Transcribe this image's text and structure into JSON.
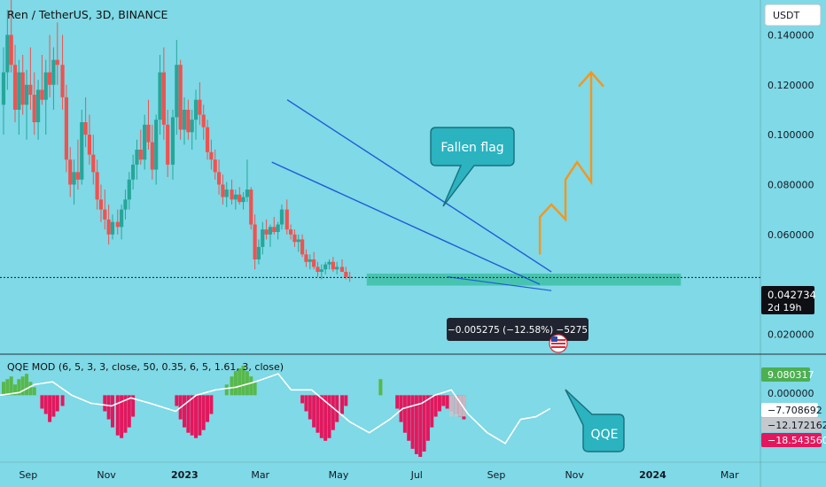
{
  "header": {
    "title": "Ren / TetherUS, 3D, BINANCE"
  },
  "currency_button": {
    "label": "USDT"
  },
  "price_axis": {
    "ticks": [
      "0.140000",
      "0.120000",
      "0.100000",
      "0.080000",
      "0.060000",
      "0.020000"
    ]
  },
  "current_price": {
    "value": "0.042734",
    "countdown": "2d 19h"
  },
  "measure_label": {
    "text": "−0.005275 (−12.58%) −5275"
  },
  "callouts": {
    "flag": "Fallen flag",
    "qqe": "QQE"
  },
  "indicator": {
    "title": "QQE MOD (6, 5, 3, 3, close, 50, 0.35, 6, 5, 1.61, 3, close)",
    "values": [
      "9.080317",
      "0.000000",
      "−7.708692",
      "−12.172162",
      "−18.543560"
    ]
  },
  "time_axis": {
    "labels": [
      "Sep",
      "Nov",
      "2023",
      "Mar",
      "May",
      "Jul",
      "Sep",
      "Nov",
      "2024",
      "Mar"
    ]
  },
  "colors": {
    "background": "#7fd9e6",
    "up": "#26a69a",
    "down": "#ef5350",
    "channel": "#1e5bd6",
    "arrow": "#f5951d",
    "callout": "#2bb3c0",
    "support_zone": "#3dbfa6",
    "hist_pos": "#58b84a",
    "hist_neg": "#e3175d",
    "qqe_line": "#ffffff"
  },
  "chart_data": {
    "type": "candlestick",
    "title": "Ren / TetherUS, 3D, BINANCE",
    "timeframe": "3D",
    "y_range": [
      0.012,
      0.154
    ],
    "x_range": [
      "2022-08-10",
      "2024-03-25"
    ],
    "candles": [
      [
        0.112,
        0.135,
        0.1,
        0.125
      ],
      [
        0.125,
        0.15,
        0.118,
        0.14
      ],
      [
        0.14,
        0.165,
        0.125,
        0.128
      ],
      [
        0.128,
        0.136,
        0.105,
        0.11
      ],
      [
        0.11,
        0.13,
        0.1,
        0.125
      ],
      [
        0.125,
        0.132,
        0.108,
        0.112
      ],
      [
        0.112,
        0.126,
        0.098,
        0.12
      ],
      [
        0.12,
        0.135,
        0.11,
        0.116
      ],
      [
        0.116,
        0.125,
        0.1,
        0.105
      ],
      [
        0.105,
        0.122,
        0.098,
        0.118
      ],
      [
        0.118,
        0.132,
        0.112,
        0.114
      ],
      [
        0.114,
        0.13,
        0.1,
        0.125
      ],
      [
        0.125,
        0.14,
        0.115,
        0.12
      ],
      [
        0.12,
        0.135,
        0.11,
        0.13
      ],
      [
        0.13,
        0.145,
        0.12,
        0.128
      ],
      [
        0.128,
        0.14,
        0.11,
        0.115
      ],
      [
        0.115,
        0.12,
        0.085,
        0.09
      ],
      [
        0.09,
        0.095,
        0.075,
        0.08
      ],
      [
        0.08,
        0.09,
        0.072,
        0.085
      ],
      [
        0.085,
        0.098,
        0.078,
        0.082
      ],
      [
        0.082,
        0.11,
        0.08,
        0.105
      ],
      [
        0.105,
        0.115,
        0.095,
        0.1
      ],
      [
        0.1,
        0.108,
        0.088,
        0.092
      ],
      [
        0.092,
        0.1,
        0.08,
        0.085
      ],
      [
        0.085,
        0.09,
        0.07,
        0.074
      ],
      [
        0.074,
        0.08,
        0.065,
        0.07
      ],
      [
        0.07,
        0.078,
        0.062,
        0.066
      ],
      [
        0.066,
        0.072,
        0.056,
        0.06
      ],
      [
        0.06,
        0.068,
        0.058,
        0.065
      ],
      [
        0.065,
        0.07,
        0.06,
        0.063
      ],
      [
        0.063,
        0.072,
        0.058,
        0.07
      ],
      [
        0.07,
        0.078,
        0.066,
        0.074
      ],
      [
        0.074,
        0.085,
        0.07,
        0.082
      ],
      [
        0.082,
        0.092,
        0.078,
        0.088
      ],
      [
        0.088,
        0.098,
        0.082,
        0.094
      ],
      [
        0.094,
        0.102,
        0.088,
        0.09
      ],
      [
        0.09,
        0.108,
        0.086,
        0.104
      ],
      [
        0.104,
        0.114,
        0.094,
        0.097
      ],
      [
        0.097,
        0.104,
        0.082,
        0.086
      ],
      [
        0.086,
        0.108,
        0.08,
        0.106
      ],
      [
        0.106,
        0.132,
        0.1,
        0.125
      ],
      [
        0.125,
        0.135,
        0.098,
        0.104
      ],
      [
        0.104,
        0.11,
        0.083,
        0.088
      ],
      [
        0.088,
        0.11,
        0.082,
        0.107
      ],
      [
        0.107,
        0.138,
        0.1,
        0.128
      ],
      [
        0.128,
        0.13,
        0.098,
        0.102
      ],
      [
        0.102,
        0.115,
        0.096,
        0.11
      ],
      [
        0.11,
        0.114,
        0.098,
        0.101
      ],
      [
        0.101,
        0.11,
        0.094,
        0.106
      ],
      [
        0.106,
        0.118,
        0.098,
        0.114
      ],
      [
        0.114,
        0.121,
        0.104,
        0.108
      ],
      [
        0.108,
        0.112,
        0.098,
        0.103
      ],
      [
        0.103,
        0.106,
        0.09,
        0.093
      ],
      [
        0.093,
        0.098,
        0.086,
        0.09
      ],
      [
        0.09,
        0.094,
        0.082,
        0.085
      ],
      [
        0.085,
        0.09,
        0.076,
        0.08
      ],
      [
        0.08,
        0.084,
        0.072,
        0.075
      ],
      [
        0.075,
        0.081,
        0.071,
        0.078
      ],
      [
        0.078,
        0.082,
        0.072,
        0.074
      ],
      [
        0.074,
        0.078,
        0.07,
        0.076
      ],
      [
        0.076,
        0.079,
        0.072,
        0.073
      ],
      [
        0.073,
        0.077,
        0.07,
        0.075
      ],
      [
        0.075,
        0.09,
        0.073,
        0.078
      ],
      [
        0.078,
        0.079,
        0.062,
        0.064
      ],
      [
        0.064,
        0.068,
        0.046,
        0.05
      ],
      [
        0.05,
        0.058,
        0.048,
        0.055
      ],
      [
        0.055,
        0.065,
        0.052,
        0.062
      ],
      [
        0.062,
        0.066,
        0.058,
        0.06
      ],
      [
        0.06,
        0.064,
        0.055,
        0.063
      ],
      [
        0.063,
        0.067,
        0.06,
        0.061
      ],
      [
        0.061,
        0.065,
        0.058,
        0.064
      ],
      [
        0.064,
        0.072,
        0.062,
        0.07
      ],
      [
        0.07,
        0.074,
        0.06,
        0.062
      ],
      [
        0.062,
        0.064,
        0.058,
        0.06
      ],
      [
        0.06,
        0.062,
        0.055,
        0.057
      ],
      [
        0.057,
        0.06,
        0.053,
        0.058
      ],
      [
        0.058,
        0.06,
        0.051,
        0.052
      ],
      [
        0.052,
        0.054,
        0.047,
        0.049
      ],
      [
        0.049,
        0.052,
        0.046,
        0.05
      ],
      [
        0.05,
        0.053,
        0.046,
        0.047
      ],
      [
        0.047,
        0.049,
        0.043,
        0.045
      ],
      [
        0.045,
        0.048,
        0.042,
        0.046
      ],
      [
        0.046,
        0.049,
        0.044,
        0.048
      ],
      [
        0.048,
        0.05,
        0.046,
        0.049
      ],
      [
        0.049,
        0.051,
        0.045,
        0.046
      ],
      [
        0.046,
        0.049,
        0.044,
        0.047
      ],
      [
        0.047,
        0.05,
        0.045,
        0.045
      ],
      [
        0.045,
        0.047,
        0.042,
        0.043
      ],
      [
        0.043,
        0.045,
        0.041,
        0.0427
      ]
    ],
    "current_price": 0.042734,
    "channel": [
      {
        "from": [
          "2023-03-22",
          0.114
        ],
        "to": [
          "2023-10-14",
          0.045
        ]
      },
      {
        "from": [
          "2023-03-10",
          0.089
        ],
        "to": [
          "2023-10-05",
          0.04
        ]
      }
    ],
    "support_zone": {
      "from": "2023-05-23",
      "to": "2024-01-23",
      "low": 0.0395,
      "high": 0.0443
    },
    "measure": {
      "from": [
        "2023-07-25",
        0.043
      ],
      "to": [
        "2023-10-14",
        0.0375
      ]
    },
    "projection_arrow": [
      [
        "2023-10-05",
        0.052
      ],
      [
        "2023-10-05",
        0.067
      ],
      [
        "2023-10-14",
        0.072
      ],
      [
        "2023-10-25",
        0.066
      ],
      [
        "2023-10-25",
        0.082
      ],
      [
        "2023-11-03",
        0.089
      ],
      [
        "2023-11-14",
        0.081
      ],
      [
        "2023-11-14",
        0.125
      ]
    ],
    "qqe": {
      "title": "QQE MOD (6, 5, 3, 3, close, 50, 0.35, 6, 5, 1.61, 3, close)",
      "y_range": [
        -25,
        14
      ],
      "histogram": [
        5,
        6,
        7,
        4,
        6,
        7,
        8,
        5,
        3,
        0,
        -5,
        -7,
        -10,
        -8,
        -6,
        -4,
        0,
        0,
        0,
        0,
        0,
        0,
        0,
        0,
        0,
        0,
        -6,
        -9,
        -12,
        -15,
        -16,
        -14,
        -12,
        -8,
        0,
        0,
        0,
        0,
        0,
        0,
        0,
        0,
        0,
        0,
        -4,
        -9,
        -12,
        -14,
        -15,
        -16,
        -15,
        -13,
        -10,
        -7,
        0,
        0,
        0,
        4,
        7,
        9,
        10,
        11,
        9,
        7,
        5,
        0,
        0,
        0,
        0,
        0,
        0,
        0,
        0,
        0,
        0,
        0,
        -3,
        -6,
        -9,
        -12,
        -14,
        -16,
        -17,
        -16,
        -13,
        -10,
        -7,
        -4,
        0,
        0,
        0,
        0,
        0,
        0,
        0,
        0,
        6,
        0,
        0,
        0,
        -5,
        -10,
        -14,
        -17,
        -20,
        -22,
        -23,
        -21,
        -17,
        -12,
        -8,
        -6,
        -4,
        -5,
        -6,
        -7,
        -8,
        -9
      ],
      "reference_values": [
        9.080317,
        0.0,
        -7.708692,
        -12.172162,
        -18.54356
      ],
      "line_points": [
        [
          "2022-08-10",
          0
        ],
        [
          "2022-08-25",
          1
        ],
        [
          "2022-09-06",
          4
        ],
        [
          "2022-09-20",
          5
        ],
        [
          "2022-10-05",
          0
        ],
        [
          "2022-10-20",
          -3
        ],
        [
          "2022-11-05",
          -4
        ],
        [
          "2022-11-20",
          -1
        ],
        [
          "2022-12-05",
          -3
        ],
        [
          "2022-12-25",
          -6
        ],
        [
          "2023-01-10",
          0
        ],
        [
          "2023-01-25",
          2
        ],
        [
          "2023-02-10",
          3
        ],
        [
          "2023-02-25",
          5
        ],
        [
          "2023-03-15",
          8
        ],
        [
          "2023-03-25",
          2
        ],
        [
          "2023-04-10",
          2
        ],
        [
          "2023-04-25",
          -4
        ],
        [
          "2023-05-10",
          -10
        ],
        [
          "2023-05-25",
          -14
        ],
        [
          "2023-06-10",
          -9
        ],
        [
          "2023-06-20",
          -5
        ],
        [
          "2023-07-05",
          -3
        ],
        [
          "2023-07-15",
          0
        ],
        [
          "2023-07-28",
          2
        ],
        [
          "2023-08-10",
          -7
        ],
        [
          "2023-08-25",
          -14
        ],
        [
          "2023-09-08",
          -18
        ],
        [
          "2023-09-20",
          -9
        ],
        [
          "2023-10-02",
          -8
        ],
        [
          "2023-10-13",
          -5
        ]
      ]
    }
  }
}
